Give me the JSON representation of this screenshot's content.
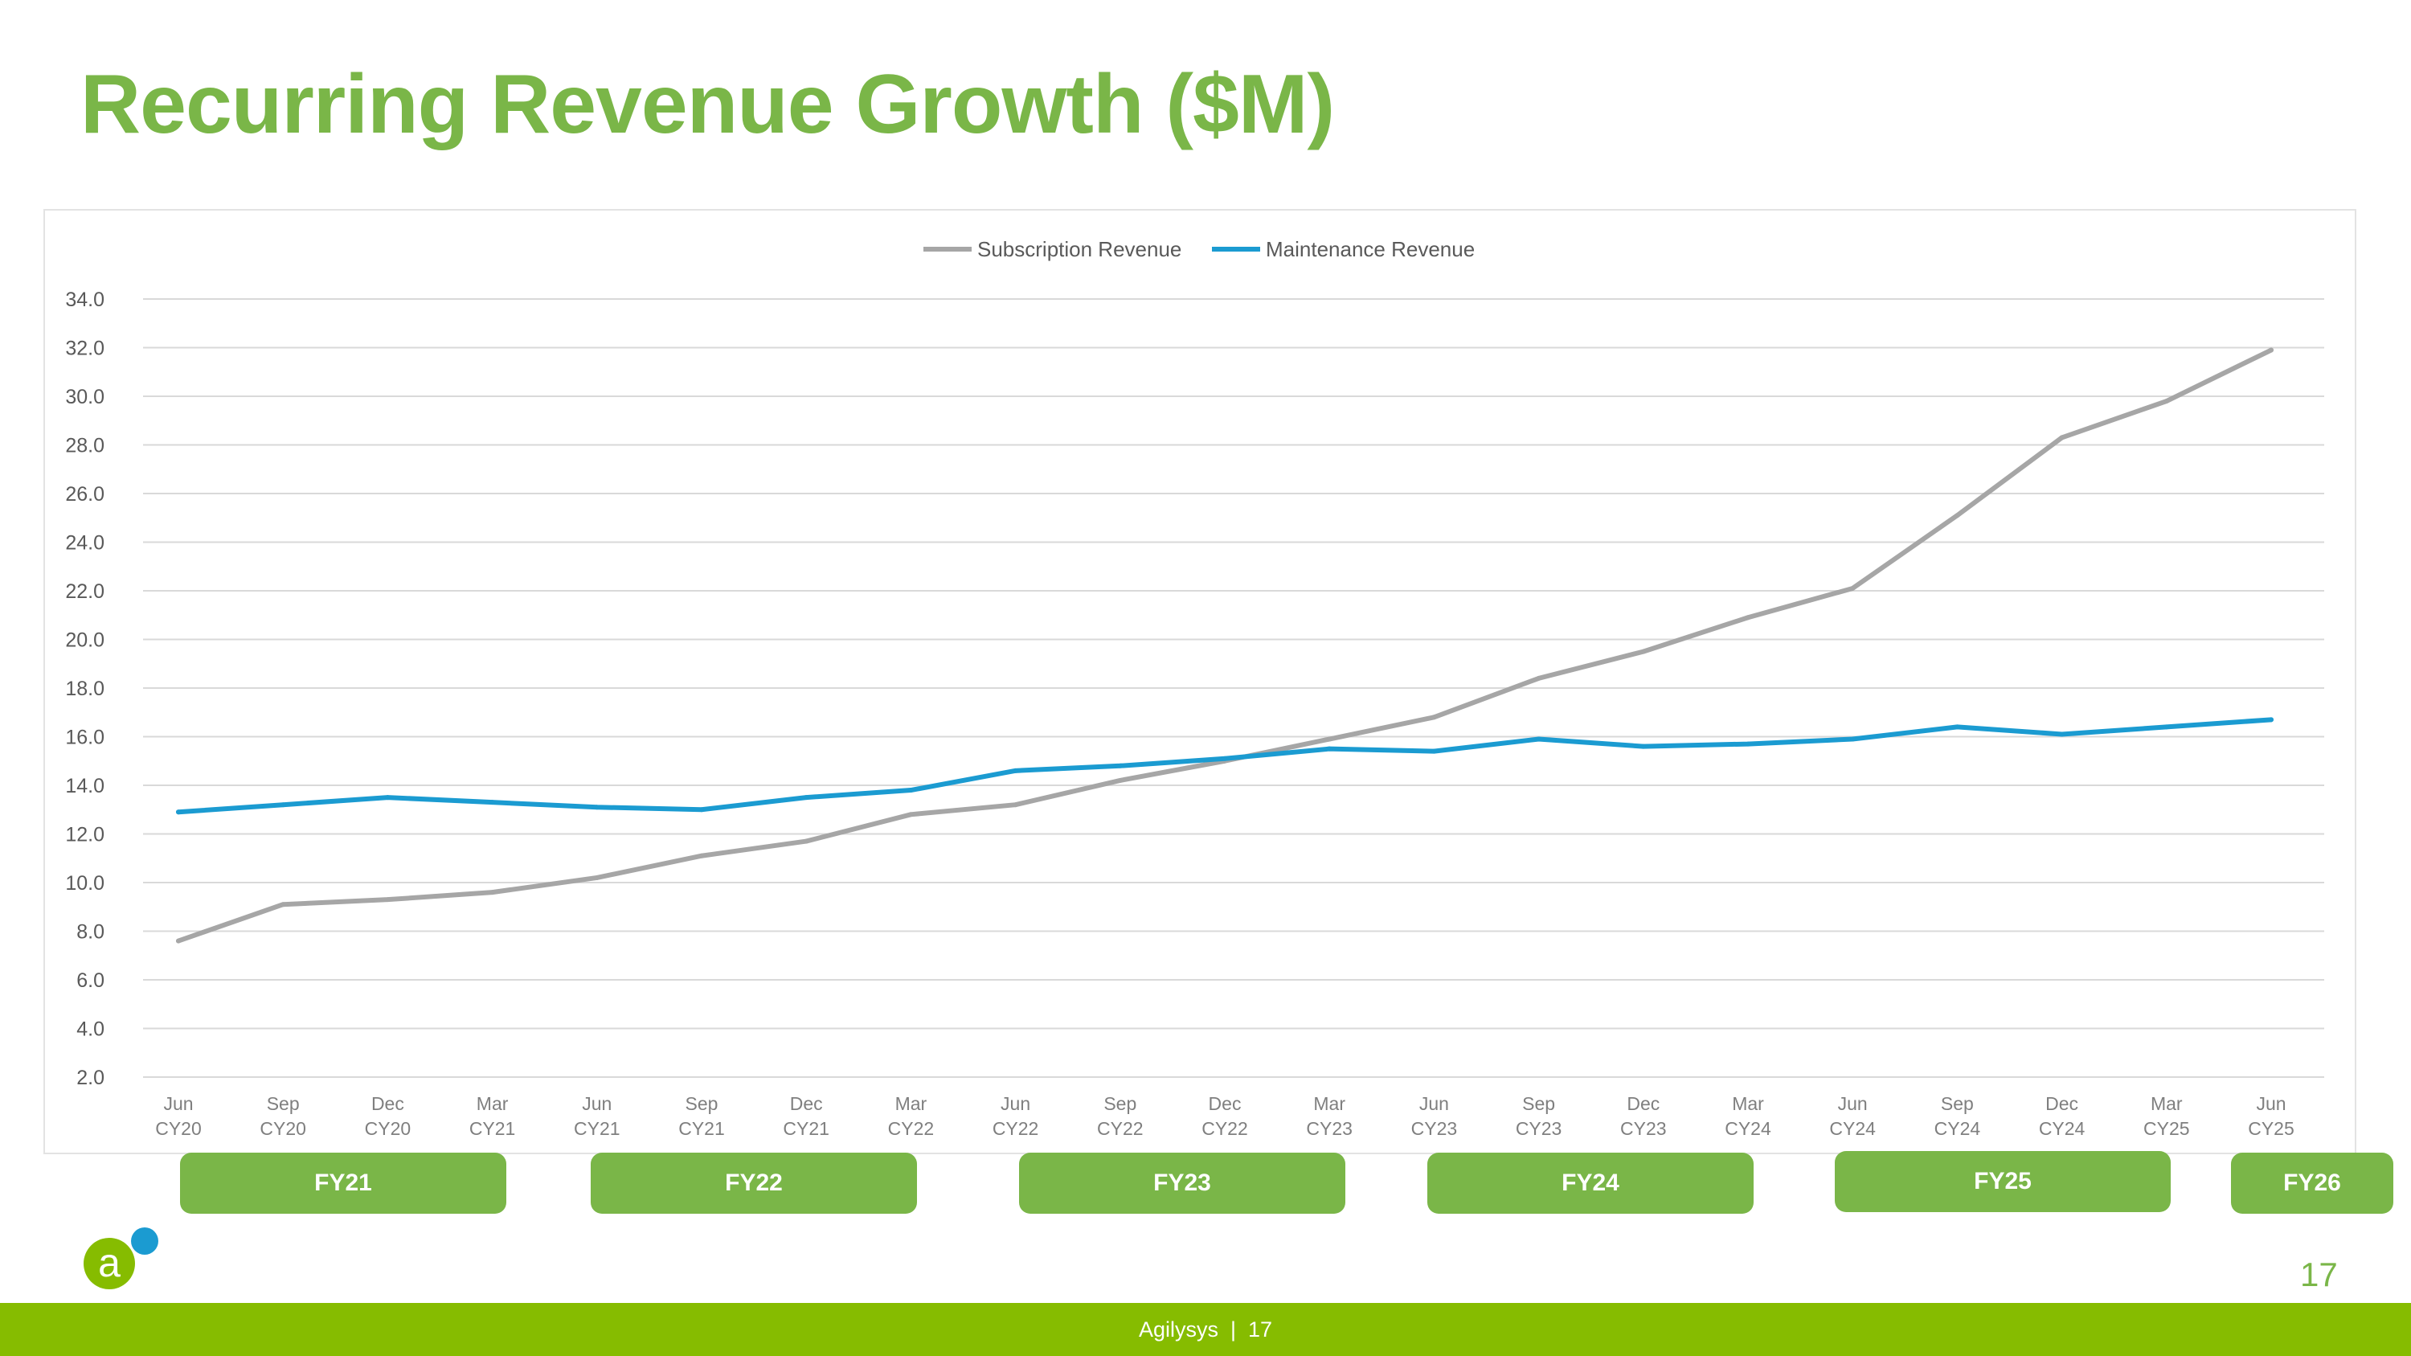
{
  "slide": {
    "title": "Recurring Revenue Growth ($M)",
    "page_number": "17",
    "footer_company": "Agilysys",
    "footer_separator": "|",
    "footer_page": "17"
  },
  "colors": {
    "title": "#7ab648",
    "subscription": "#a6a6a6",
    "maintenance": "#1b9bd1",
    "fy_badge": "#7ab648",
    "footer": "#86bc00"
  },
  "logo": {
    "letter": "a",
    "name": "agilysys-logo-icon"
  },
  "fiscal_years": [
    {
      "label": "FY21"
    },
    {
      "label": "FY22"
    },
    {
      "label": "FY23"
    },
    {
      "label": "FY24"
    },
    {
      "label": "FY25"
    },
    {
      "label": "FY26"
    }
  ],
  "chart_data": {
    "type": "line",
    "title": "",
    "xlabel": "",
    "ylabel": "",
    "ylim": [
      2.0,
      34.0
    ],
    "y_ticks": [
      "2.0",
      "4.0",
      "6.0",
      "8.0",
      "10.0",
      "12.0",
      "14.0",
      "16.0",
      "18.0",
      "20.0",
      "22.0",
      "24.0",
      "26.0",
      "28.0",
      "30.0",
      "32.0",
      "34.0"
    ],
    "grid": true,
    "legend_position": "top-center",
    "categories": [
      [
        "Jun",
        "CY20"
      ],
      [
        "Sep",
        "CY20"
      ],
      [
        "Dec",
        "CY20"
      ],
      [
        "Mar",
        "CY21"
      ],
      [
        "Jun",
        "CY21"
      ],
      [
        "Sep",
        "CY21"
      ],
      [
        "Dec",
        "CY21"
      ],
      [
        "Mar",
        "CY22"
      ],
      [
        "Jun",
        "CY22"
      ],
      [
        "Sep",
        "CY22"
      ],
      [
        "Dec",
        "CY22"
      ],
      [
        "Mar",
        "CY23"
      ],
      [
        "Jun",
        "CY23"
      ],
      [
        "Sep",
        "CY23"
      ],
      [
        "Dec",
        "CY23"
      ],
      [
        "Mar",
        "CY24"
      ],
      [
        "Jun",
        "CY24"
      ],
      [
        "Sep",
        "CY24"
      ],
      [
        "Dec",
        "CY24"
      ],
      [
        "Mar",
        "CY25"
      ],
      [
        "Jun",
        "CY25"
      ]
    ],
    "series": [
      {
        "name": "Subscription Revenue",
        "color": "#a6a6a6",
        "values": [
          7.6,
          9.1,
          9.3,
          9.6,
          10.2,
          11.1,
          11.7,
          12.8,
          13.2,
          14.2,
          15.0,
          15.9,
          16.8,
          18.4,
          19.5,
          20.9,
          22.1,
          25.1,
          28.3,
          29.8,
          31.9
        ]
      },
      {
        "name": "Maintenance Revenue",
        "color": "#1b9bd1",
        "values": [
          12.9,
          13.2,
          13.5,
          13.3,
          13.1,
          13.0,
          13.5,
          13.8,
          14.6,
          14.8,
          15.1,
          15.5,
          15.4,
          15.9,
          15.6,
          15.7,
          15.9,
          16.4,
          16.1,
          16.4,
          16.7
        ]
      }
    ]
  }
}
